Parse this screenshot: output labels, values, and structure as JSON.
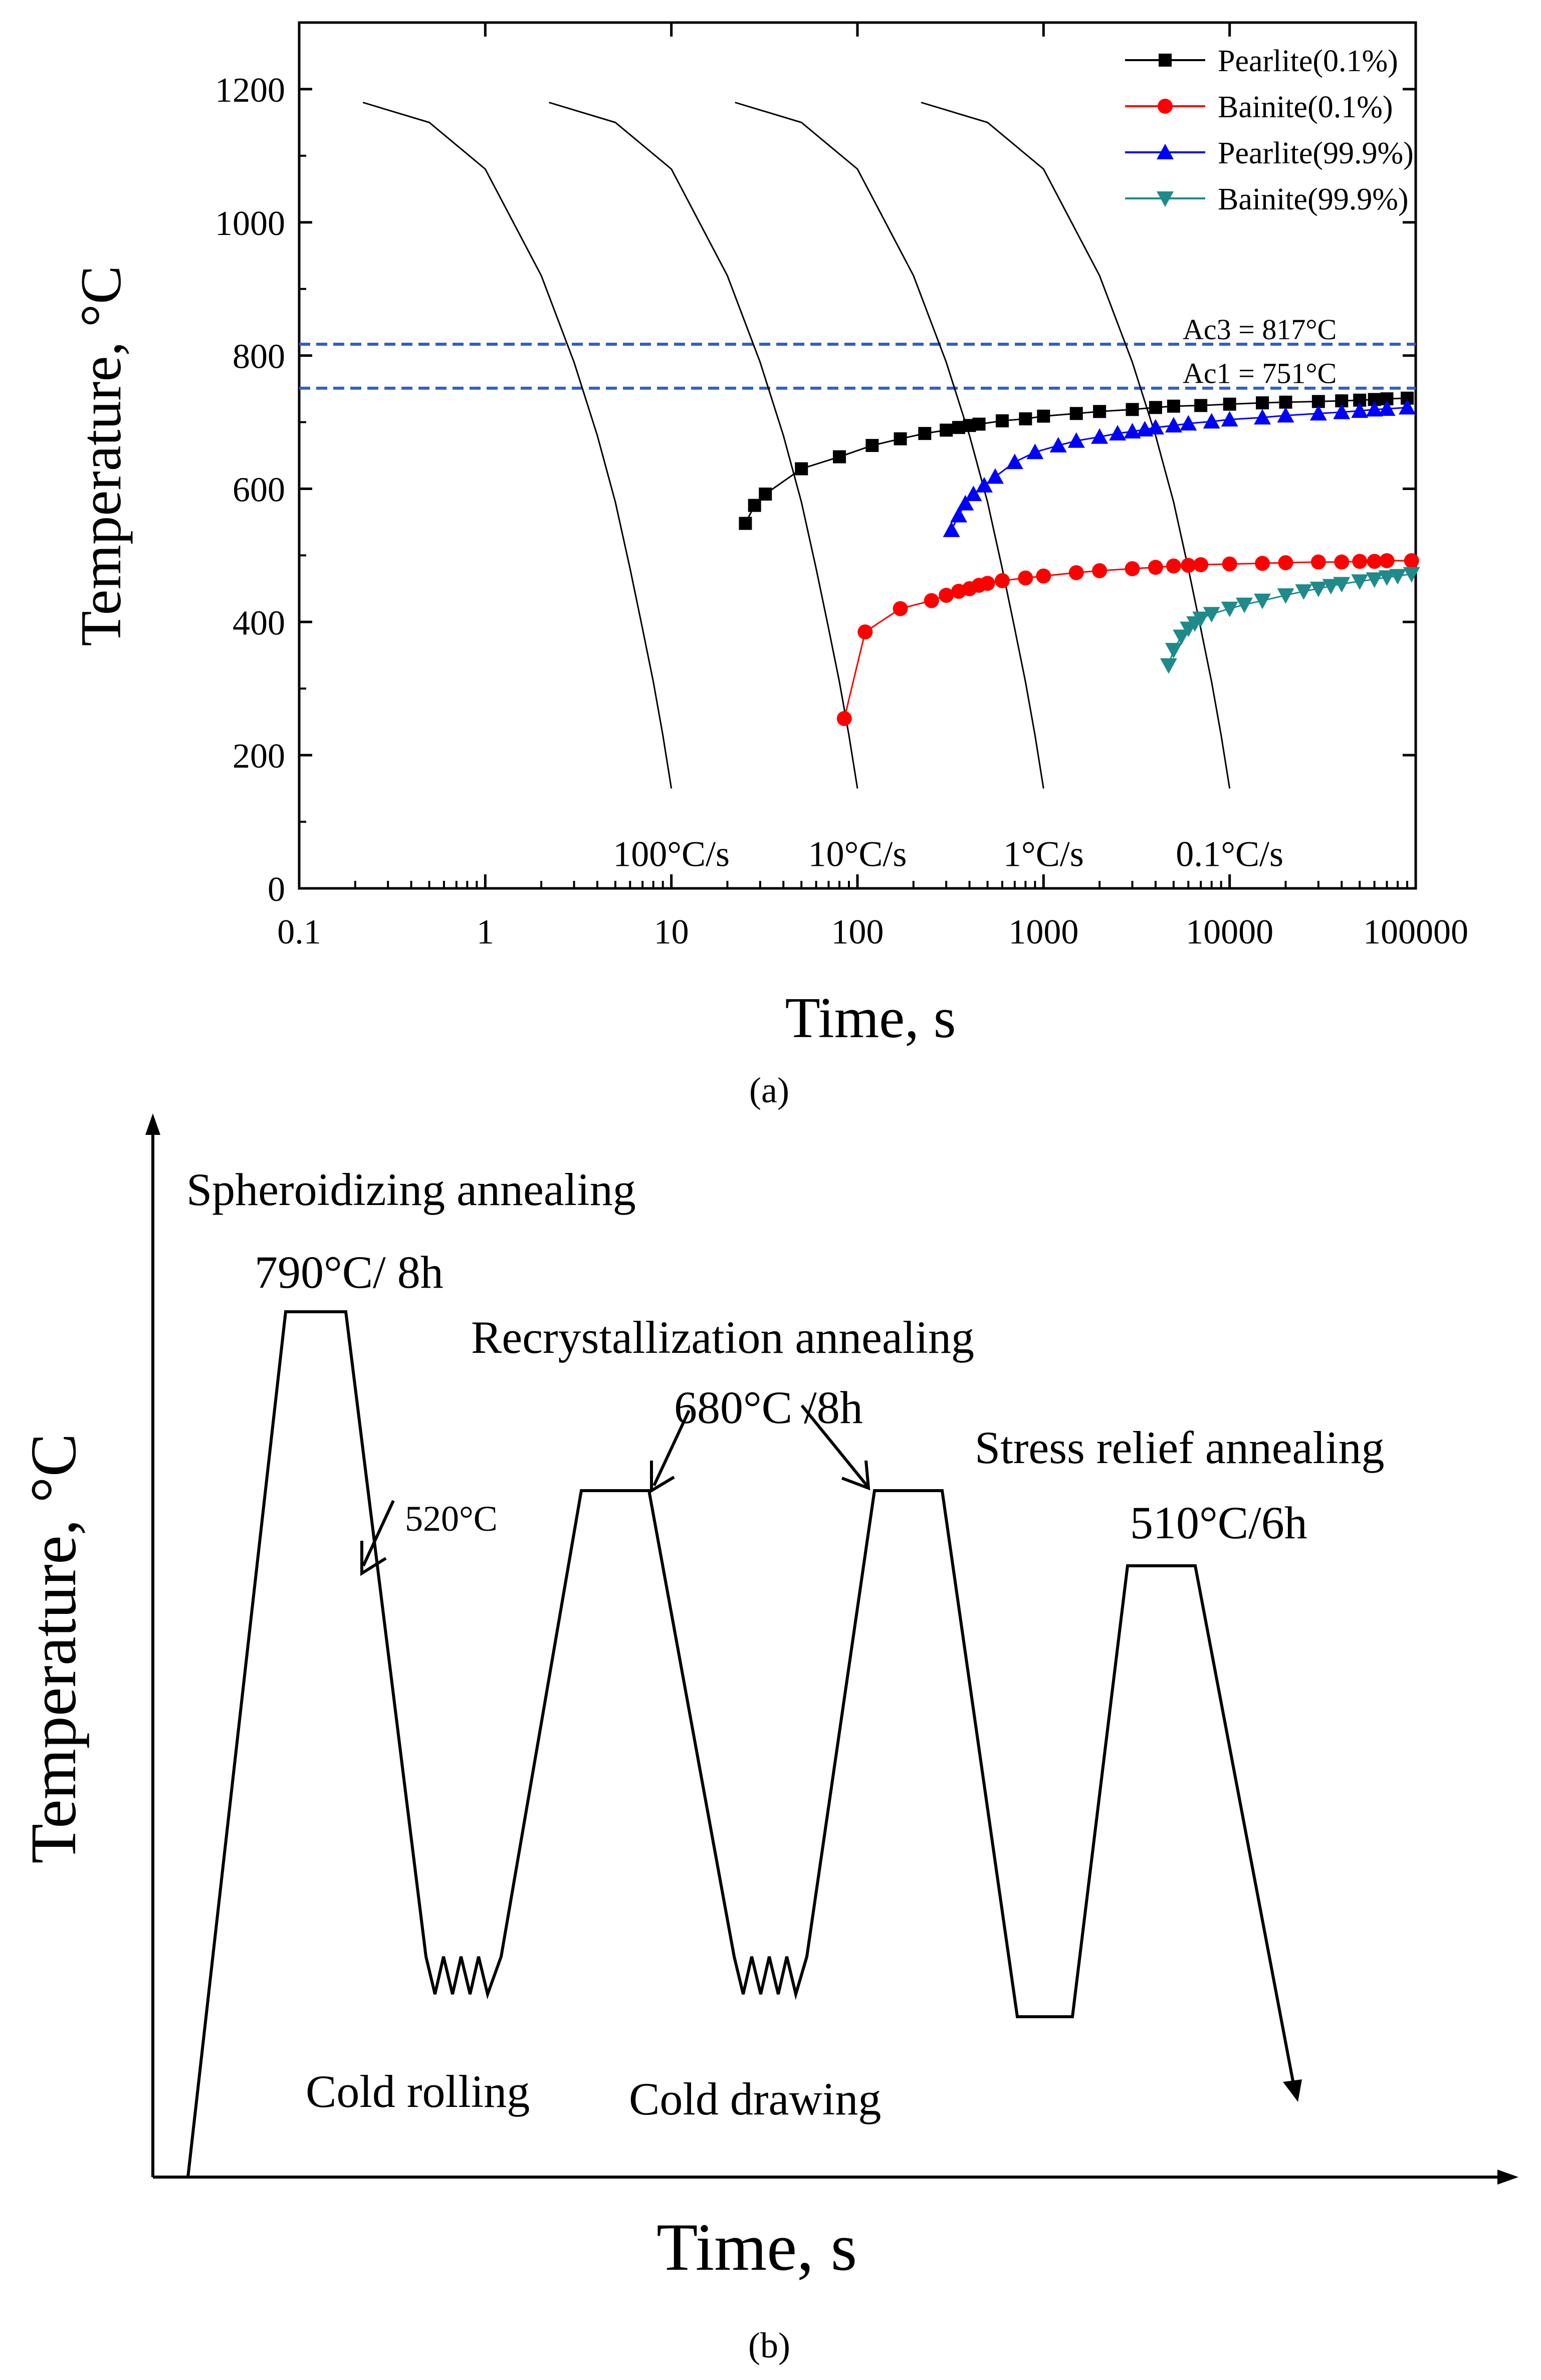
{
  "chart_data": [
    {
      "type": "line",
      "panel_label": "(a)",
      "xlabel": "Time, s",
      "ylabel": "Temperature, °C",
      "xscale": "log",
      "xlim": [
        0.1,
        100000
      ],
      "ylim": [
        0,
        1300
      ],
      "x_ticks": [
        0.1,
        1,
        10,
        100,
        1000,
        10000,
        100000
      ],
      "x_tick_labels": [
        "0.1",
        "1",
        "10",
        "100",
        "1000",
        "10000",
        "100000"
      ],
      "y_ticks": [
        0,
        200,
        400,
        600,
        800,
        1000,
        1200
      ],
      "y_tick_labels": [
        "0",
        "200",
        "400",
        "600",
        "800",
        "1000",
        "1200"
      ],
      "legend_position": "top-right",
      "reference_lines": [
        {
          "label": "Ac3 = 817°C",
          "y": 817,
          "color": "#2f5fc9"
        },
        {
          "label": "Ac1 = 751°C",
          "y": 751,
          "color": "#2f5fc9"
        }
      ],
      "cooling_curves": [
        {
          "label": "100°C/s",
          "x": [
            0.22,
            0.5,
            1,
            2,
            3,
            4,
            5,
            6,
            7,
            8,
            9,
            10
          ],
          "y": [
            1180,
            1150,
            1080,
            920,
            790,
            680,
            580,
            480,
            390,
            310,
            230,
            150
          ]
        },
        {
          "label": "10°C/s",
          "x": [
            2.2,
            5,
            10,
            20,
            30,
            40,
            50,
            60,
            70,
            80,
            90,
            100
          ],
          "y": [
            1180,
            1150,
            1080,
            920,
            790,
            680,
            580,
            480,
            390,
            310,
            230,
            150
          ]
        },
        {
          "label": "1°C/s",
          "x": [
            22,
            50,
            100,
            200,
            300,
            400,
            500,
            600,
            700,
            800,
            900,
            1000
          ],
          "y": [
            1180,
            1150,
            1080,
            920,
            790,
            680,
            580,
            480,
            390,
            310,
            230,
            150
          ]
        },
        {
          "label": "0.1°C/s",
          "x": [
            220,
            500,
            1000,
            2000,
            3000,
            4000,
            5000,
            6000,
            7000,
            8000,
            9000,
            10000
          ],
          "y": [
            1180,
            1150,
            1080,
            920,
            790,
            680,
            580,
            480,
            390,
            310,
            230,
            150
          ]
        }
      ],
      "series": [
        {
          "name": "Pearlite(0.1%)",
          "color": "#000000",
          "marker": "square",
          "x": [
            25,
            28,
            32,
            50,
            80,
            120,
            170,
            230,
            300,
            350,
            400,
            450,
            600,
            800,
            1000,
            1500,
            2000,
            3000,
            4000,
            5000,
            7000,
            10000,
            15000,
            20000,
            30000,
            40000,
            50000,
            60000,
            70000,
            90000
          ],
          "y": [
            548,
            575,
            592,
            630,
            648,
            665,
            675,
            683,
            688,
            692,
            695,
            697,
            702,
            705,
            709,
            713,
            716,
            719,
            722,
            724,
            725,
            727,
            729,
            730,
            731,
            732,
            733,
            734,
            735,
            736
          ]
        },
        {
          "name": "Bainite(0.1%)",
          "color": "#ff0000",
          "marker": "circle",
          "x": [
            85,
            110,
            170,
            250,
            300,
            350,
            400,
            450,
            500,
            600,
            800,
            1000,
            1500,
            2000,
            3000,
            4000,
            5000,
            6000,
            7000,
            10000,
            15000,
            20000,
            30000,
            40000,
            50000,
            60000,
            70000,
            95000
          ],
          "y": [
            255,
            385,
            420,
            432,
            440,
            446,
            450,
            455,
            458,
            462,
            466,
            469,
            474,
            477,
            480,
            482,
            484,
            485,
            486,
            487,
            488,
            489,
            490,
            490,
            491,
            491,
            492,
            492
          ]
        },
        {
          "name": "Pearlite(99.9%)",
          "color": "#0000ff",
          "marker": "triangle-up",
          "x": [
            320,
            350,
            380,
            420,
            480,
            550,
            700,
            900,
            1200,
            1500,
            2000,
            2500,
            3000,
            3500,
            4000,
            5000,
            6000,
            8000,
            10000,
            15000,
            20000,
            30000,
            40000,
            50000,
            60000,
            70000,
            90000
          ],
          "y": [
            538,
            560,
            578,
            592,
            605,
            618,
            640,
            655,
            665,
            672,
            678,
            683,
            686,
            689,
            692,
            695,
            698,
            701,
            704,
            707,
            710,
            713,
            715,
            717,
            719,
            720,
            722
          ]
        },
        {
          "name": "Bainite(99.9%)",
          "color": "#1f8a8a",
          "marker": "triangle-down",
          "x": [
            4700,
            5000,
            5500,
            6000,
            6500,
            7000,
            8000,
            10000,
            12000,
            15000,
            20000,
            25000,
            30000,
            35000,
            40000,
            50000,
            60000,
            70000,
            80000,
            95000
          ],
          "y": [
            335,
            358,
            378,
            390,
            398,
            405,
            412,
            420,
            426,
            432,
            440,
            446,
            450,
            454,
            457,
            461,
            464,
            467,
            469,
            472
          ]
        }
      ]
    },
    {
      "type": "diagram",
      "panel_label": "(b)",
      "xlabel": "Time, s",
      "ylabel": "Temperature, °C",
      "annotations": {
        "spheroidizing": "Spheroidizing annealing",
        "spheroidizing_temp": "790°C/ 8h",
        "quench_temp": "520°C",
        "recrystallization": "Recrystallization annealing",
        "recrystallization_temp": "680°C /8h",
        "stress_relief": "Stress relief annealing",
        "stress_relief_temp": "510°C/6h",
        "cold_rolling": "Cold rolling",
        "cold_drawing": "Cold drawing"
      }
    }
  ]
}
